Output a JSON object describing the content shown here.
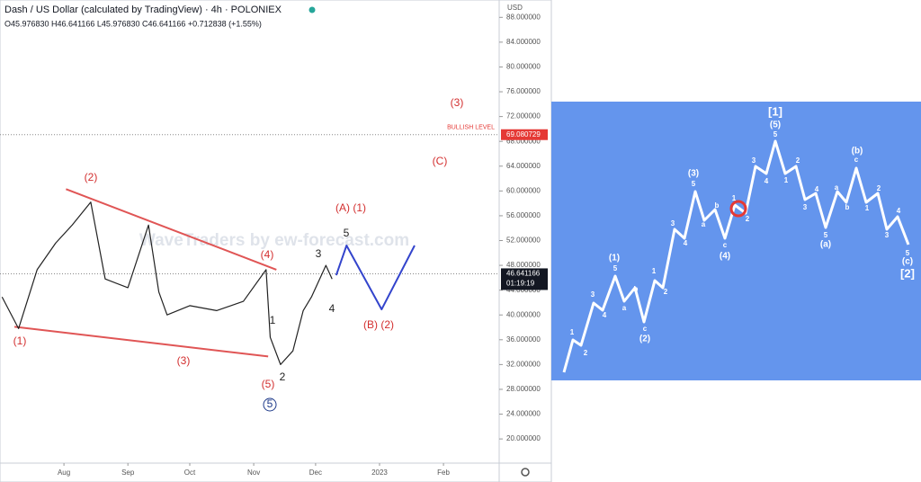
{
  "header": {
    "title": "Dash / US Dollar (calculated by TradingView) · 4h · POLONIEX",
    "ohlc": "O45.976830 H46.641166 L45.976830 C46.641166 +0.712838 (+1.55%)",
    "watermark": "WaveTraders by ew-forecast.com",
    "currency": "USD"
  },
  "chart_data": {
    "type": "line",
    "color": "#222222",
    "x": [
      1,
      9,
      18,
      27,
      35,
      44,
      51,
      62,
      72,
      77,
      81,
      92,
      105,
      118,
      129,
      131,
      136,
      142,
      147,
      151,
      158,
      161
    ],
    "values": [
      42.9,
      37.8,
      47.3,
      51.6,
      54.5,
      58.2,
      45.8,
      44.4,
      54.5,
      43.7,
      40.0,
      41.5,
      40.7,
      42.2,
      47.3,
      36.4,
      32.0,
      34.2,
      40.7,
      42.9,
      48.0,
      45.8
    ],
    "xlim": [
      0,
      242
    ],
    "xticks": [
      {
        "value": 31,
        "label": "Aug"
      },
      {
        "value": 62,
        "label": "Sep"
      },
      {
        "value": 92,
        "label": "Oct"
      },
      {
        "value": 123,
        "label": "Nov"
      },
      {
        "value": 153,
        "label": "Dec"
      },
      {
        "value": 184,
        "label": "2023"
      },
      {
        "value": 215,
        "label": "Feb"
      }
    ],
    "ylim": [
      16.1,
      90.8
    ],
    "yticks": [
      {
        "value": 20,
        "label": "20.000000"
      },
      {
        "value": 24,
        "label": "24.000000"
      },
      {
        "value": 28,
        "label": "28.000000"
      },
      {
        "value": 32,
        "label": "32.000000"
      },
      {
        "value": 36,
        "label": "36.000000"
      },
      {
        "value": 40,
        "label": "40.000000"
      },
      {
        "value": 44,
        "label": "44.000000"
      },
      {
        "value": 48,
        "label": "48.000000"
      },
      {
        "value": 52,
        "label": "52.000000"
      },
      {
        "value": 56,
        "label": "56.000000"
      },
      {
        "value": 60,
        "label": "60.000000"
      },
      {
        "value": 64,
        "label": "64.000000"
      },
      {
        "value": 68,
        "label": "68.000000"
      },
      {
        "value": 72,
        "label": "72.000000"
      },
      {
        "value": 76,
        "label": "76.000000"
      },
      {
        "value": 80,
        "label": "80.000000"
      },
      {
        "value": 84,
        "label": "84.000000"
      },
      {
        "value": 88,
        "label": "88.000000"
      }
    ],
    "projection": {
      "color": "#3344cc",
      "x": [
        163,
        168,
        185,
        201
      ],
      "values": [
        46.4,
        51.2,
        40.9,
        51.2
      ]
    },
    "trendlines": {
      "color": "#e05555",
      "lines": [
        {
          "x": [
            32,
            134
          ],
          "values": [
            60.3,
            47.3
          ]
        },
        {
          "x": [
            7,
            130
          ],
          "values": [
            38.1,
            33.3
          ]
        }
      ]
    },
    "bullish_level": {
      "name": "BULLISH LEVEL",
      "value": 69.080729,
      "color": "#e53935"
    },
    "last_price": {
      "value": 46.641166,
      "countdown": "01:19:19"
    },
    "annotations": [
      "(1)",
      "(2)",
      "(3)",
      "(4)",
      "(5)",
      "5",
      "1",
      "2",
      "3",
      "4",
      "5",
      "(A) (1)",
      "(B) (2)",
      "(3)",
      "(C)"
    ]
  },
  "diagram": {
    "labels": [
      "1",
      "2",
      "3",
      "4",
      "(1)",
      "5",
      "a",
      "b",
      "c",
      "(2)",
      "1",
      "2",
      "3",
      "4",
      "(3)",
      "5",
      "a",
      "b",
      "c",
      "(4)",
      "1",
      "2",
      "3",
      "4",
      "(5)",
      "5",
      "[1]",
      "1",
      "2",
      "3",
      "4",
      "5",
      "(a)",
      "a",
      "b",
      "c",
      "(b)",
      "1",
      "2",
      "3",
      "4",
      "5",
      "(c)",
      "[2]"
    ]
  }
}
